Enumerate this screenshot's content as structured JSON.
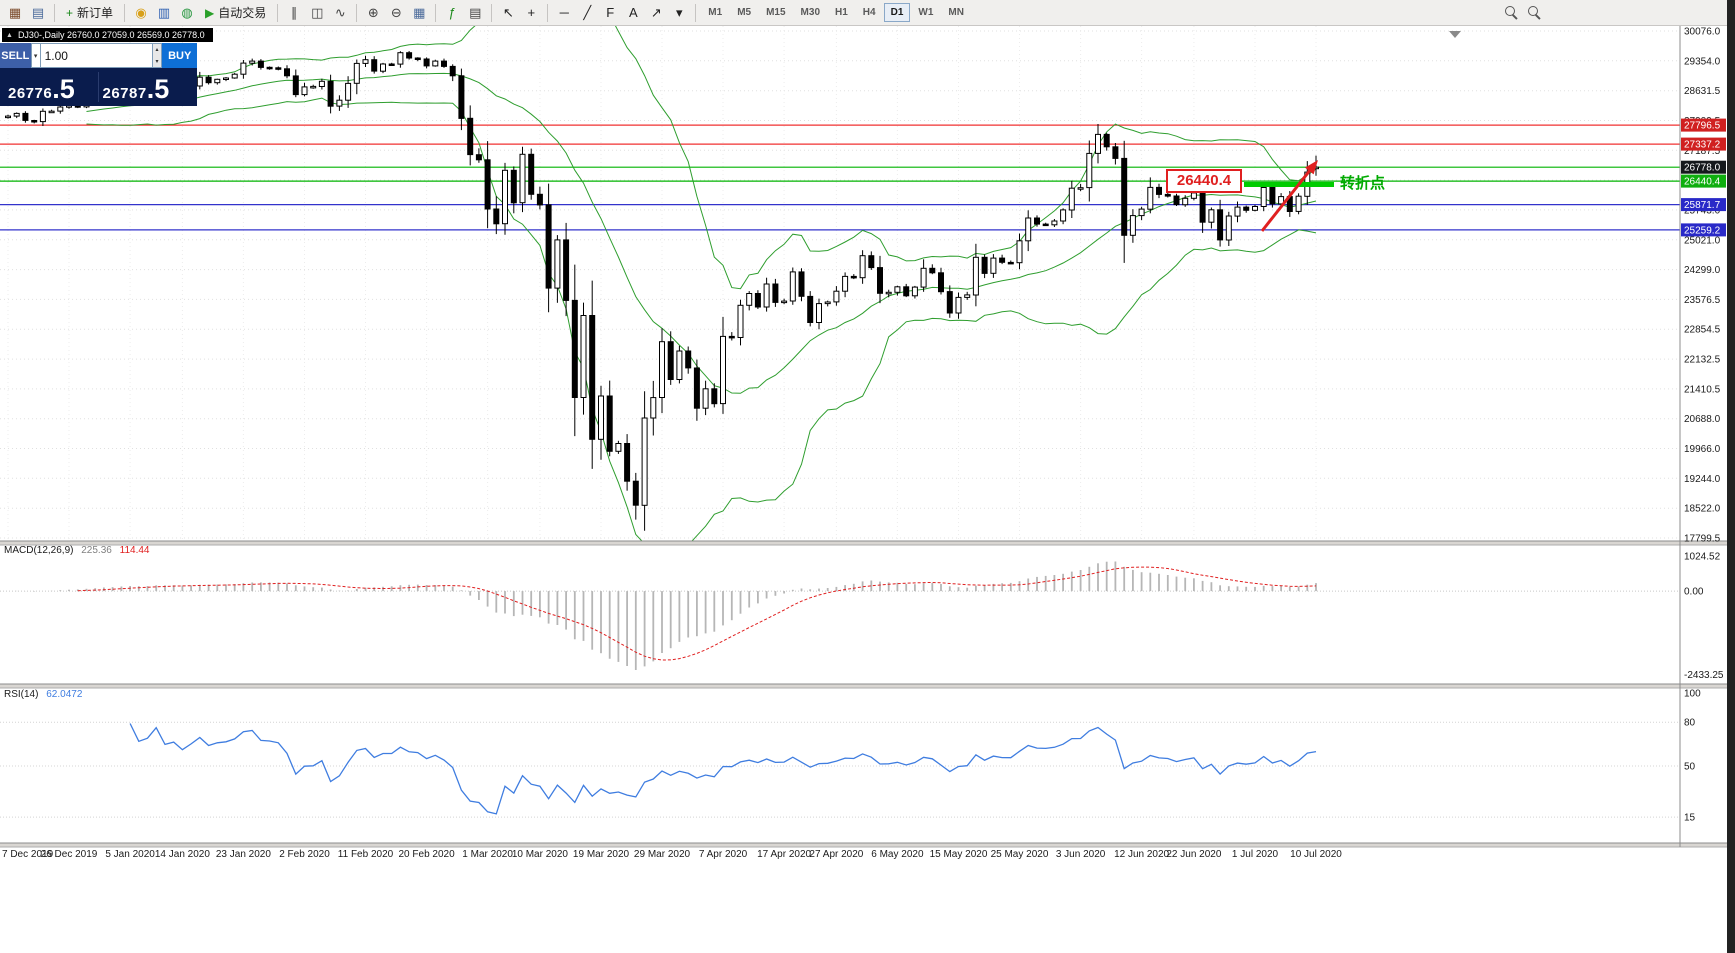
{
  "toolbar": {
    "groups": [
      {
        "items": [
          {
            "name": "new-chart-icon",
            "glyph": "▦",
            "color": "#7a4a2a"
          },
          {
            "name": "chart-profiles-icon",
            "glyph": "▤",
            "color": "#4a6a9a"
          }
        ]
      },
      {
        "items": [
          {
            "name": "new-order-button",
            "label": "新订单",
            "glyph": "+",
            "color": "#1c8a1c"
          }
        ]
      },
      {
        "items": [
          {
            "name": "coin-icon",
            "glyph": "◉",
            "color": "#d8a018"
          },
          {
            "name": "market-chart-icon",
            "glyph": "▥",
            "color": "#2a5db0"
          },
          {
            "name": "support-icon",
            "glyph": "◍",
            "color": "#27963f"
          },
          {
            "name": "auto-trading-button",
            "label": "自动交易",
            "glyph": "▶",
            "color": "#2aa02a"
          }
        ]
      },
      {
        "items": [
          {
            "name": "bar-chart-icon",
            "glyph": "∥",
            "color": "#444444"
          },
          {
            "name": "candlestick-chart-icon",
            "glyph": "◫",
            "color": "#444444"
          },
          {
            "name": "line-chart-icon",
            "glyph": "∿",
            "color": "#444444"
          }
        ]
      },
      {
        "items": [
          {
            "name": "zoom-in-icon",
            "glyph": "⊕",
            "color": "#444444"
          },
          {
            "name": "zoom-out-icon",
            "glyph": "⊖",
            "color": "#444444"
          },
          {
            "name": "tile-windows-icon",
            "glyph": "▦",
            "color": "#4a6a9a"
          }
        ]
      },
      {
        "items": [
          {
            "name": "indicators-icon",
            "glyph": "ƒ",
            "color": "#1c8a1c"
          },
          {
            "name": "objects-list-icon",
            "glyph": "▤",
            "color": "#444444"
          }
        ]
      },
      {
        "items": [
          {
            "name": "cursor-icon",
            "glyph": "↖",
            "color": "#222222"
          },
          {
            "name": "crosshair-icon",
            "glyph": "+",
            "color": "#222222"
          }
        ]
      },
      {
        "items": [
          {
            "name": "horizontal-line-icon",
            "glyph": "─",
            "color": "#222222"
          },
          {
            "name": "trendline-icon",
            "glyph": "╱",
            "color": "#222222"
          },
          {
            "name": "fibonacci-icon",
            "glyph": "F",
            "color": "#222222"
          },
          {
            "name": "text-label-icon",
            "glyph": "A",
            "color": "#222222"
          },
          {
            "name": "arrow-objects-icon",
            "glyph": "↗",
            "color": "#222222"
          },
          {
            "name": "shapes-dropdown-icon",
            "glyph": "▾",
            "color": "#222222"
          }
        ]
      }
    ],
    "timeframes": [
      {
        "label": "M1"
      },
      {
        "label": "M5"
      },
      {
        "label": "M15"
      },
      {
        "label": "M30"
      },
      {
        "label": "H1"
      },
      {
        "label": "H4"
      },
      {
        "label": "D1",
        "active": true
      },
      {
        "label": "W1"
      },
      {
        "label": "MN"
      }
    ],
    "right_icons": [
      {
        "name": "search-icon"
      },
      {
        "name": "zoom-presets-icon"
      }
    ]
  },
  "chart": {
    "symbol_line": {
      "dropdown_glyph": "▲",
      "text": "DJ30-,Daily  26760.0 27059.0 26569.0 26778.0"
    },
    "trade_panel": {
      "sell_label": "SELL",
      "buy_label": "BUY",
      "volume": "1.00",
      "dropdown_glyph": "▾",
      "stepper_up_glyph": "▴",
      "stepper_down_glyph": "▾",
      "sell_price": "26776",
      "sell_price_frac": ".5",
      "buy_price": "26787",
      "buy_price_frac": ".5"
    },
    "price_axis": [
      "30076.0",
      "29354.0",
      "28631.5",
      "27909.5",
      "27187.5",
      "26465.5",
      "25743.0",
      "25021.0",
      "24299.0",
      "23576.5",
      "22854.5",
      "22132.5",
      "21410.5",
      "20688.0",
      "19966.0",
      "19244.0",
      "18522.0",
      "17799.5"
    ],
    "time_axis": [
      "7 Dec 2019",
      "26 Dec 2019",
      "5 Jan 2020",
      "14 Jan 2020",
      "23 Jan 2020",
      "2 Feb 2020",
      "11 Feb 2020",
      "20 Feb 2020",
      "1 Mar 2020",
      "10 Mar 2020",
      "19 Mar 2020",
      "29 Mar 2020",
      "7 Apr 2020",
      "17 Apr 2020",
      "27 Apr 2020",
      "6 May 2020",
      "15 May 2020",
      "25 May 2020",
      "3 Jun 2020",
      "12 Jun 2020",
      "22 Jun 2020",
      "1 Jul 2020",
      "10 Jul 2020"
    ],
    "levels": [
      {
        "price": 27796.5,
        "label": "27796.5",
        "line_color": "#f03030",
        "badge_color": "#d02020"
      },
      {
        "price": 27337.2,
        "label": "27337.2",
        "line_color": "#f03030",
        "badge_color": "#d02020"
      },
      {
        "price": 26778.0,
        "label": "26778.0",
        "line_color": "#00b400",
        "badge_color": "#15181c"
      },
      {
        "price": 26440.4,
        "label": "26440.4",
        "line_color": "#00b400",
        "badge_color": "#0fae0f"
      },
      {
        "price": 25871.7,
        "label": "25871.7",
        "line_color": "#3333cc",
        "badge_color": "#2929c8"
      },
      {
        "price": 25259.2,
        "label": "25259.2",
        "line_color": "#3333cc",
        "badge_color": "#2929c8"
      }
    ],
    "annotations": {
      "level_label": "26440.4",
      "turning_point_text": "转折点"
    },
    "chart_data": {
      "type": "candlestick",
      "symbol": "DJ30",
      "timeframe": "Daily",
      "price_max": 30076.0,
      "price_min": 17799.5,
      "first_open": 27980,
      "last_candle": {
        "o": 26760.0,
        "h": 27059.0,
        "l": 26569.0,
        "c": 26778.0
      },
      "closes": [
        28015,
        28080,
        27910,
        27882,
        28132,
        28135,
        28235,
        28267,
        28239,
        28377,
        28455,
        28511,
        28515,
        28621,
        28645,
        28462,
        28538,
        28869,
        28635,
        28704,
        28584,
        28745,
        28957,
        28824,
        28907,
        28939,
        29030,
        29298,
        29348,
        29196,
        29186,
        29160,
        28990,
        28536,
        28723,
        28734,
        28859,
        28256,
        28400,
        28808,
        29291,
        29380,
        29103,
        29277,
        29276,
        29551,
        29423,
        29398,
        29232,
        29348,
        29220,
        28992,
        27961,
        27081,
        26958,
        25767,
        25409,
        26703,
        25917,
        27090,
        26121,
        25865,
        23851,
        25018,
        23553,
        21201,
        23186,
        20188,
        21237,
        19899,
        20087,
        19174,
        18592,
        20705,
        21200,
        22552,
        21637,
        22327,
        21917,
        20944,
        21413,
        21053,
        22680,
        22654,
        23434,
        23719,
        23391,
        23949,
        23504,
        23537,
        24242,
        23650,
        23018,
        23476,
        23515,
        23775,
        24134,
        24102,
        24634,
        24346,
        23724,
        23749,
        23883,
        23665,
        23876,
        24331,
        24222,
        23765,
        23248,
        23625,
        23685,
        24597,
        24207,
        24576,
        24474,
        24465,
        24995,
        25548,
        25401,
        25383,
        25475,
        25743,
        26270,
        26282,
        27111,
        27572,
        27272,
        26990,
        25128,
        25606,
        25763,
        26290,
        26120,
        26080,
        25871,
        26025,
        26156,
        25446,
        25746,
        25016,
        25596,
        25813,
        25735,
        25827,
        26287,
        25890,
        26067,
        25706,
        26075,
        26660,
        26778
      ],
      "indicators": {
        "bollinger_period": 20,
        "bollinger_dev": 2,
        "macd": [
          12,
          26,
          9
        ],
        "rsi_period": 14
      }
    }
  },
  "macd": {
    "name": "MACD(12,26,9)",
    "main_value": "225.36",
    "signal_value": "114.44",
    "axis": [
      "1024.52",
      "0.00",
      "-2433.25"
    ],
    "ylim": [
      -2600,
      1200
    ]
  },
  "rsi": {
    "name": "RSI(14)",
    "value": "62.0472",
    "axis": [
      "100",
      "80",
      "50",
      "15"
    ],
    "levels": [
      80,
      50,
      15
    ]
  }
}
